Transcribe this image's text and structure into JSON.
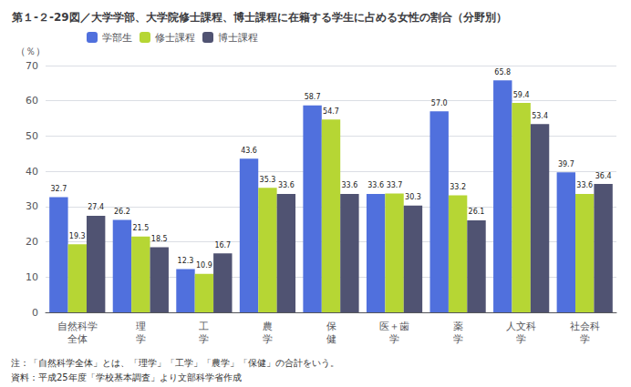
{
  "chart_data": {
    "type": "bar",
    "title": "第１-２-29図／大学学部、大学院修士課程、博士課程に在籍する学生に占める女性の割合（分野別）",
    "ylabel": "（％）",
    "categories": [
      "自然科学\n全体",
      "理\n学",
      "工\n学",
      "農\n学",
      "保\n健",
      "医＋歯\n学",
      "薬\n学",
      "人文科\n学",
      "社会科\n学"
    ],
    "series": [
      {
        "name": "学部生",
        "values": [
          32.7,
          26.2,
          12.3,
          43.6,
          58.7,
          33.6,
          57.0,
          65.8,
          39.7
        ],
        "value_labels": [
          "32.7",
          "26.2",
          "12.3",
          "43.6",
          "58.7",
          "33.6",
          "57.0",
          "65.8",
          "39.7"
        ]
      },
      {
        "name": "修士課程",
        "values": [
          19.3,
          21.5,
          10.9,
          35.3,
          54.7,
          33.7,
          33.2,
          59.4,
          33.6
        ],
        "value_labels": [
          "19.3",
          "21.5",
          "10.9",
          "35.3",
          "54.7",
          "33.7",
          "33.2",
          "59.4",
          "33.6"
        ]
      },
      {
        "name": "博士課程",
        "values": [
          27.4,
          18.5,
          16.7,
          33.6,
          33.6,
          30.3,
          26.1,
          53.4,
          36.4
        ],
        "value_labels": [
          "27.4",
          "18.5",
          "16.7",
          "33.6",
          "33.6",
          "30.3",
          "26.1",
          "53.4",
          "36.4"
        ]
      }
    ],
    "ylim": [
      0,
      70
    ],
    "yticks": [
      0,
      10,
      20,
      30,
      40,
      50,
      60,
      70
    ],
    "grid": true,
    "legend": "upper left",
    "data_labels": true,
    "annotations": [
      "注：「自然科学全体」とは、「理学」「工学」「農学」「保健」の合計をいう。",
      "資料：平成25年度「学校基本調査」より文部科学省作成"
    ]
  }
}
